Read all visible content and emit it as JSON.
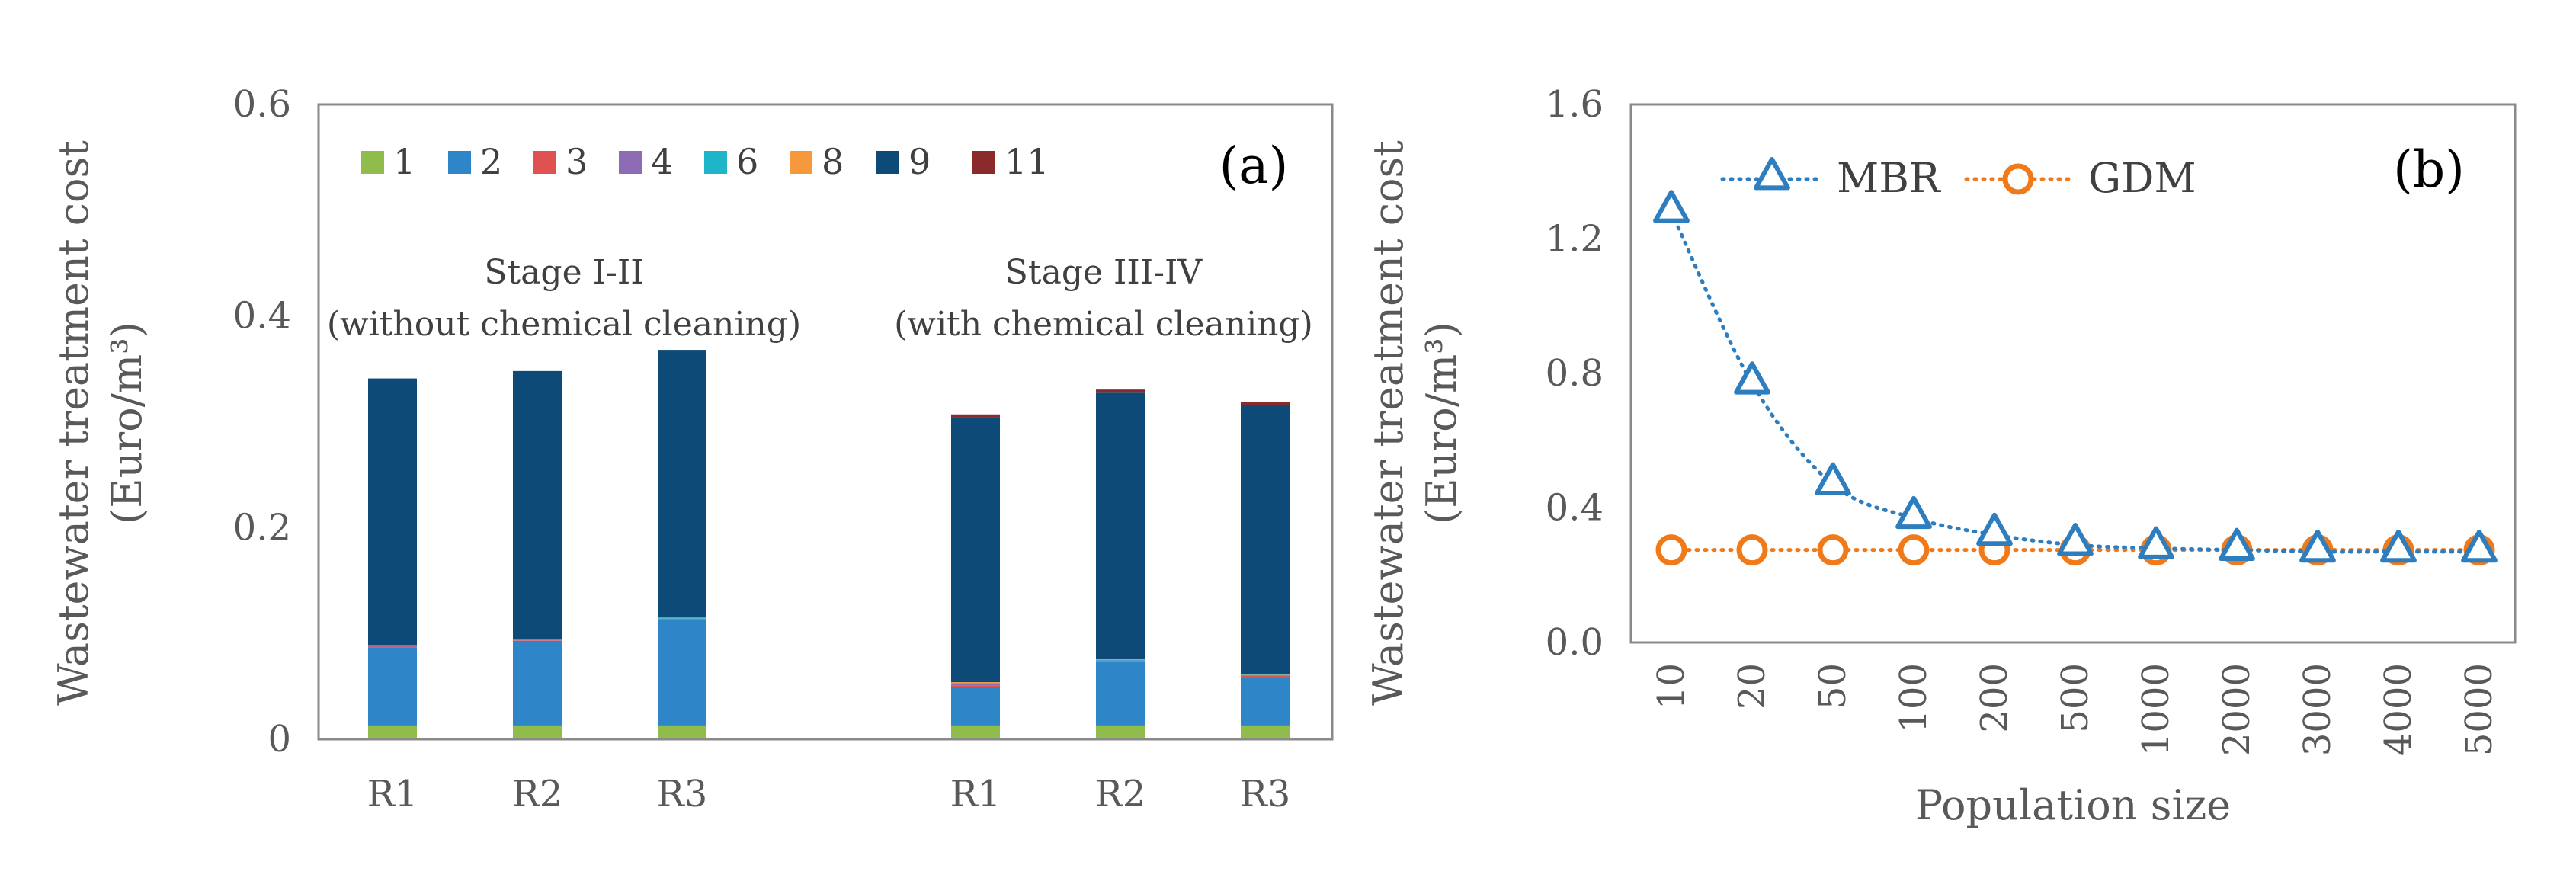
{
  "chart_data": [
    {
      "type": "bar",
      "stacked": true,
      "panel_label": "(a)",
      "ylabel_line1": "Wastewater treatment cost",
      "ylabel_line2": "(Euro/m³)",
      "xlabel": "",
      "ylim": [
        0,
        0.6
      ],
      "yticks": [
        "0",
        "0.2",
        "0.4",
        "0.6"
      ],
      "grid": false,
      "legend_position": "top",
      "categories": [
        "R1",
        "R2",
        "R3",
        "R1",
        "R2",
        "R3"
      ],
      "group_labels": [
        {
          "line1": "Stage I-II",
          "line2": "(without chemical cleaning)"
        },
        {
          "line1": "Stage III-IV",
          "line2": "(with chemical cleaning)"
        }
      ],
      "series": [
        {
          "name": "1",
          "color": "#8fbc4a",
          "values": [
            0.013,
            0.013,
            0.013,
            0.013,
            0.013,
            0.013
          ]
        },
        {
          "name": "2",
          "color": "#2e86c8",
          "values": [
            0.074,
            0.08,
            0.1,
            0.036,
            0.06,
            0.046
          ]
        },
        {
          "name": "3",
          "color": "#e05252",
          "values": [
            0.0005,
            0.0005,
            0.0005,
            0.002,
            0.001,
            0.001
          ]
        },
        {
          "name": "4",
          "color": "#8e6bb5",
          "values": [
            0.0005,
            0.0005,
            0.0005,
            0.001,
            0.0005,
            0.0005
          ]
        },
        {
          "name": "6",
          "color": "#1eb5c8",
          "values": [
            0.0005,
            0.0005,
            0.0005,
            0.001,
            0.0005,
            0.0005
          ]
        },
        {
          "name": "8",
          "color": "#f5993c",
          "values": [
            0.0005,
            0.0005,
            0.0005,
            0.001,
            0.0005,
            0.0005
          ]
        },
        {
          "name": "9",
          "color": "#0d4a77",
          "values": [
            0.252,
            0.253,
            0.253,
            0.25,
            0.252,
            0.254
          ]
        },
        {
          "name": "11",
          "color": "#8b2a2a",
          "values": [
            0.0,
            0.0,
            0.0,
            0.003,
            0.003,
            0.003
          ]
        }
      ]
    },
    {
      "type": "line",
      "panel_label": "(b)",
      "ylabel_line1": "Wastewater treatment cost",
      "ylabel_line2": "(Euro/m³)",
      "xlabel": "Population size",
      "ylim": [
        0,
        1.6
      ],
      "yticks": [
        "0.0",
        "0.4",
        "0.8",
        "1.2",
        "1.6"
      ],
      "grid": false,
      "legend_position": "top",
      "categories": [
        "10",
        "20",
        "50",
        "100",
        "200",
        "500",
        "1000",
        "2000",
        "3000",
        "4000",
        "5000"
      ],
      "series": [
        {
          "name": "MBR",
          "color": "#2e7ebf",
          "marker": "triangle",
          "values": [
            1.28,
            0.77,
            0.47,
            0.37,
            0.32,
            0.29,
            0.28,
            0.275,
            0.27,
            0.27,
            0.27
          ]
        },
        {
          "name": "GDM",
          "color": "#f07a1a",
          "marker": "circle",
          "values": [
            0.275,
            0.275,
            0.275,
            0.275,
            0.275,
            0.275,
            0.275,
            0.275,
            0.275,
            0.275,
            0.275
          ]
        }
      ]
    }
  ]
}
